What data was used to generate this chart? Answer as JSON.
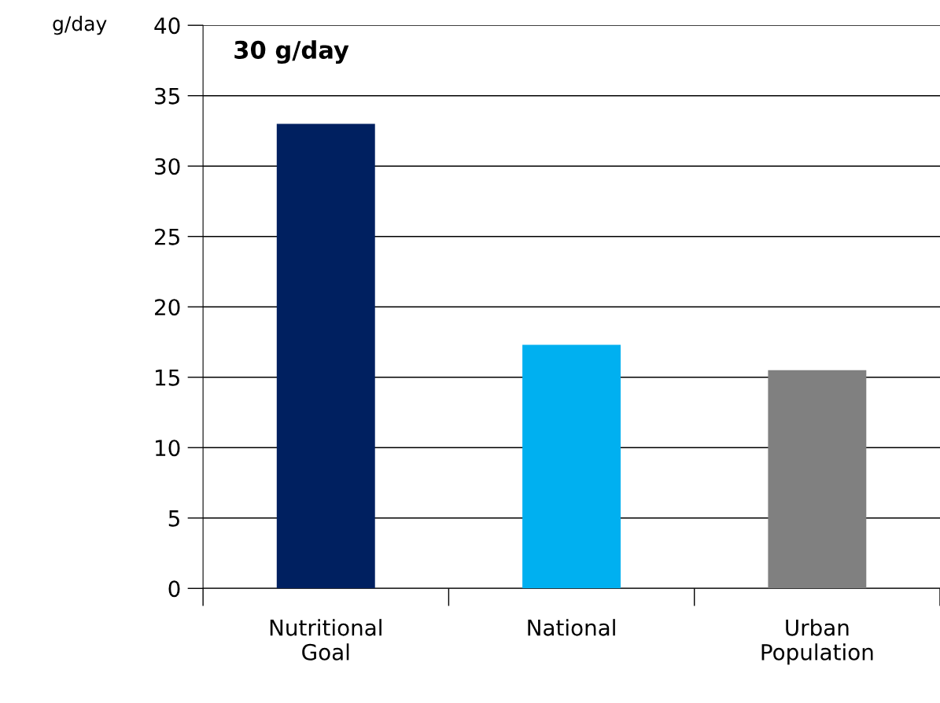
{
  "chart_data": {
    "type": "bar",
    "ylabel": "g/day",
    "categories": [
      "Nutritional\nGoal",
      "National",
      "Urban\nPopulation"
    ],
    "values": [
      33.0,
      17.3,
      15.5
    ],
    "colors": [
      "#002060",
      "#00b0f0",
      "#808080"
    ],
    "ylim": [
      0,
      40
    ],
    "yticks": [
      0,
      5,
      10,
      15,
      20,
      25,
      30,
      35,
      40
    ],
    "grid": "y",
    "annotations": [
      "30 g/day"
    ]
  }
}
